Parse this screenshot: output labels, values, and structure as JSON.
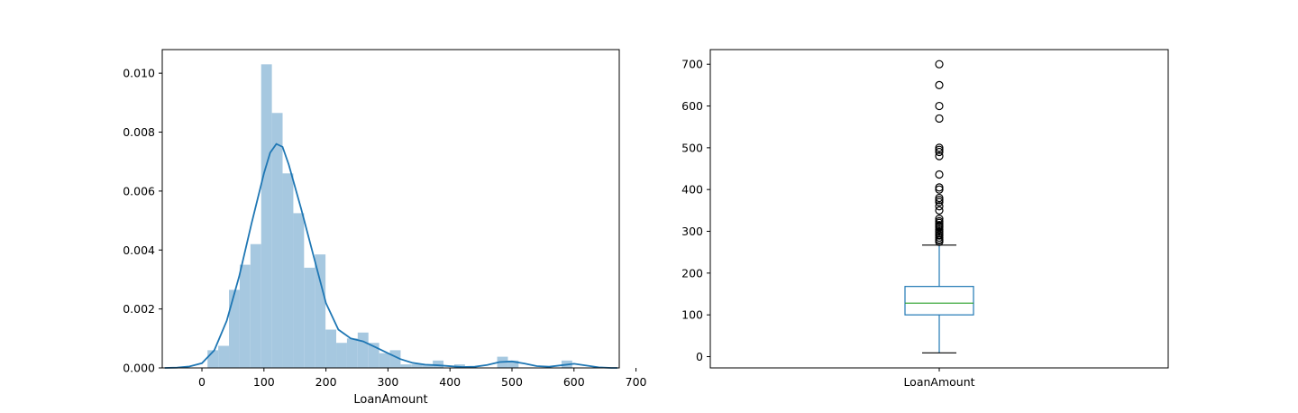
{
  "chart_data": [
    {
      "type": "histogram",
      "xlabel": "LoanAmount",
      "ylabel": "",
      "xlim": [
        -64,
        673
      ],
      "ylim": [
        0,
        0.0108
      ],
      "xticks": [
        "0",
        "100",
        "200",
        "300",
        "400",
        "500",
        "600",
        "700"
      ],
      "xtick_values": [
        0,
        100,
        200,
        300,
        400,
        500,
        600,
        700
      ],
      "yticks": [
        "0.000",
        "0.002",
        "0.004",
        "0.006",
        "0.008",
        "0.010"
      ],
      "ytick_values": [
        0,
        0.002,
        0.004,
        0.006,
        0.008,
        0.01
      ],
      "bin_width": 17.3,
      "bins": [
        {
          "x0": 9,
          "value": 0.0006
        },
        {
          "x0": 26.3,
          "value": 0.00075
        },
        {
          "x0": 43.6,
          "value": 0.00265
        },
        {
          "x0": 60.9,
          "value": 0.0035
        },
        {
          "x0": 78.2,
          "value": 0.0042
        },
        {
          "x0": 95.5,
          "value": 0.0103
        },
        {
          "x0": 112.8,
          "value": 0.00865
        },
        {
          "x0": 130.1,
          "value": 0.0066
        },
        {
          "x0": 147.4,
          "value": 0.00525
        },
        {
          "x0": 164.7,
          "value": 0.0034
        },
        {
          "x0": 182.0,
          "value": 0.00385
        },
        {
          "x0": 199.3,
          "value": 0.0013
        },
        {
          "x0": 216.6,
          "value": 0.00085
        },
        {
          "x0": 233.9,
          "value": 0.001
        },
        {
          "x0": 251.2,
          "value": 0.0012
        },
        {
          "x0": 268.5,
          "value": 0.00085
        },
        {
          "x0": 285.8,
          "value": 0.0005
        },
        {
          "x0": 303.1,
          "value": 0.0006
        },
        {
          "x0": 320.4,
          "value": 0.00012
        },
        {
          "x0": 337.7,
          "value": 0.00012
        },
        {
          "x0": 355.0,
          "value": 0.00012
        },
        {
          "x0": 372.3,
          "value": 0.00025
        },
        {
          "x0": 389.6,
          "value": 0.0
        },
        {
          "x0": 406.9,
          "value": 0.00012
        },
        {
          "x0": 424.2,
          "value": 0.0
        },
        {
          "x0": 441.5,
          "value": 0.0
        },
        {
          "x0": 458.8,
          "value": 0.0
        },
        {
          "x0": 476.1,
          "value": 0.00038
        },
        {
          "x0": 493.4,
          "value": 0.00025
        },
        {
          "x0": 510.7,
          "value": 0.0
        },
        {
          "x0": 528.0,
          "value": 0.0
        },
        {
          "x0": 545.3,
          "value": 0.0
        },
        {
          "x0": 562.6,
          "value": 0.0
        },
        {
          "x0": 579.9,
          "value": 0.00025
        },
        {
          "x0": 597.2,
          "value": 0.0
        }
      ],
      "kde": {
        "x": [
          -60,
          -40,
          -20,
          0,
          20,
          40,
          60,
          80,
          100,
          110,
          120,
          130,
          140,
          160,
          180,
          200,
          220,
          240,
          260,
          280,
          300,
          320,
          340,
          360,
          380,
          400,
          420,
          440,
          460,
          480,
          500,
          520,
          540,
          560,
          580,
          600,
          620,
          640,
          660,
          670
        ],
        "y": [
          0.0,
          1e-05,
          5e-05,
          0.00016,
          0.0006,
          0.0016,
          0.0031,
          0.0049,
          0.0066,
          0.0073,
          0.0076,
          0.0075,
          0.0069,
          0.0054,
          0.0038,
          0.0022,
          0.0013,
          0.001,
          0.0009,
          0.0007,
          0.0005,
          0.0003,
          0.00017,
          0.00011,
          9e-05,
          6e-05,
          3e-05,
          4e-05,
          0.0001,
          0.0002,
          0.00022,
          0.00015,
          6e-05,
          4e-05,
          9e-05,
          0.00014,
          8e-05,
          2e-05,
          0.0,
          0.0
        ]
      },
      "colors": {
        "bars": "#a6c8e0",
        "kde": "#1f77b4"
      }
    },
    {
      "type": "box",
      "category": "LoanAmount",
      "xlabel": "LoanAmount",
      "ylim": [
        -27,
        735
      ],
      "yticks": [
        "0",
        "100",
        "200",
        "300",
        "400",
        "500",
        "600",
        "700"
      ],
      "ytick_values": [
        0,
        100,
        200,
        300,
        400,
        500,
        600,
        700
      ],
      "whisker_low": 9,
      "q1": 100,
      "median": 128,
      "q3": 168,
      "whisker_high": 267,
      "outliers": [
        275,
        279,
        280,
        285,
        290,
        292,
        296,
        300,
        304,
        310,
        312,
        315,
        320,
        324,
        330,
        350,
        360,
        370,
        375,
        380,
        400,
        405,
        436,
        480,
        490,
        495,
        500,
        570,
        600,
        650,
        700
      ],
      "colors": {
        "box": "#1f77b4",
        "median": "#2ca02c",
        "whisker": "#1f77b4",
        "flier": "#000000"
      }
    }
  ]
}
